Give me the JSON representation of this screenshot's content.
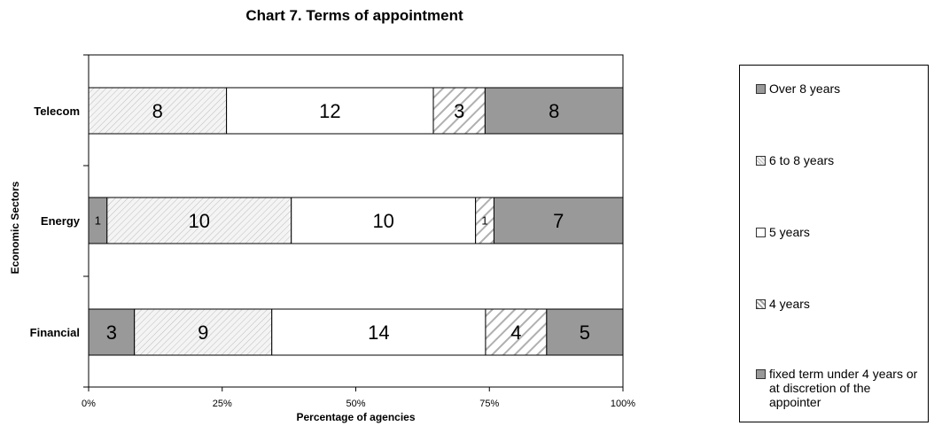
{
  "chart_data": {
    "type": "bar",
    "orientation": "horizontal",
    "stacked": "percent",
    "title": "Chart 7. Terms of appointment",
    "xlabel": "Percentage of agencies",
    "ylabel": "Economic Sectors",
    "xlim": [
      0,
      100
    ],
    "xticks": [
      "0%",
      "25%",
      "50%",
      "75%",
      "100%"
    ],
    "categories": [
      "Telecom",
      "Energy",
      "Financial"
    ],
    "series": [
      {
        "name": "fixed term under 4 years or at discretion of the appointer",
        "values": [
          0,
          1,
          3
        ],
        "fill": "solid",
        "color": "#999999"
      },
      {
        "name": "6 to 8 years",
        "values": [
          8,
          10,
          9
        ],
        "fill": "fine-hatch",
        "color": "#f1f1f1"
      },
      {
        "name": "5 years",
        "values": [
          12,
          10,
          14
        ],
        "fill": "solid",
        "color": "#ffffff"
      },
      {
        "name": "4 years",
        "values": [
          3,
          1,
          4
        ],
        "fill": "wide-hatch",
        "color": "#ffffff"
      },
      {
        "name": "Over 8 years",
        "values": [
          8,
          7,
          5
        ],
        "fill": "solid",
        "color": "#999999"
      }
    ],
    "legend": {
      "position": "right",
      "order": [
        "Over 8 years",
        "6 to 8 years",
        "5 years",
        "4 years",
        "fixed term under 4 years or at discretion of the appointer"
      ]
    },
    "grid": false
  }
}
